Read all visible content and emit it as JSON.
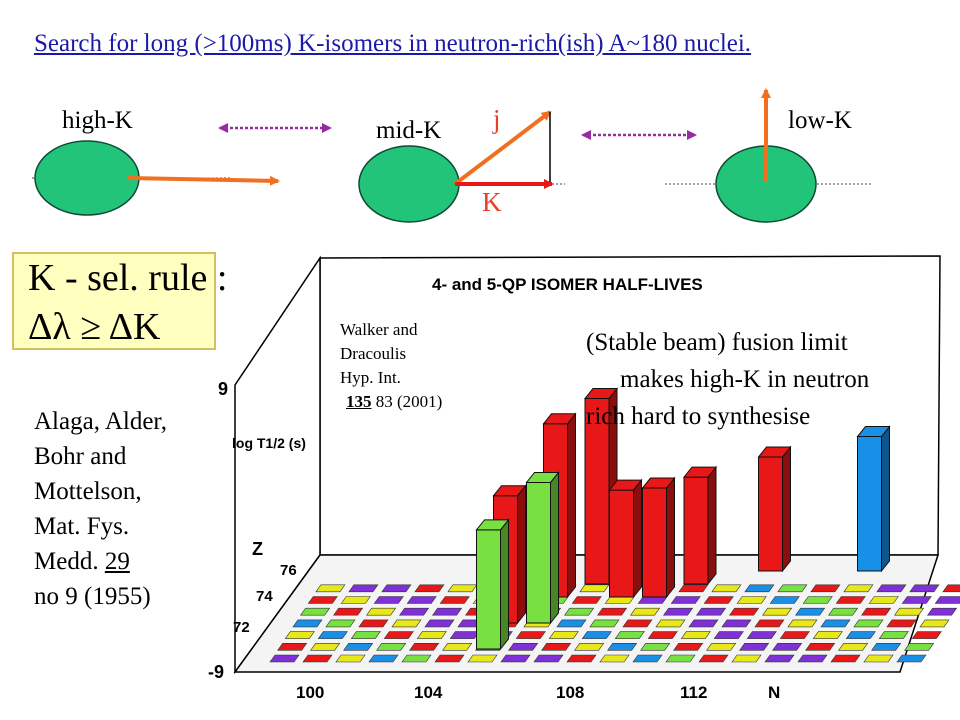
{
  "title": "Search for long (>100ms) K-isomers in neutron-rich(ish) A~180 nuclei.",
  "deformation_diagram": {
    "high_k_label": "high-K",
    "mid_k_label": "mid-K",
    "low_k_label": "low-K",
    "j_symbol": "j",
    "k_symbol": "K"
  },
  "selection_rule": {
    "line1": "K - sel. rule :",
    "line2": "Δλ ≥ ΔK"
  },
  "reference_alaga": {
    "line1": "Alaga, Alder,",
    "line2": "Bohr and",
    "line3": "Mottelson,",
    "line4": "Mat. Fys.",
    "line5_prefix": "Medd.",
    "volume": "29",
    "line6": "no 9 (1955)"
  },
  "reference_walker": {
    "line1": "Walker and",
    "line2": "Dracoulis",
    "line3": "Hyp. Int.",
    "volume": "135",
    "pages": "83 (2001)"
  },
  "fusion_note": {
    "line1": "(Stable beam) fusion limit",
    "line2": "makes high-K in neutron",
    "line3": "rich hard to synthesise"
  },
  "colors": {
    "title": "#1a1aa8",
    "nucleus": "#22c47a",
    "arrow": "#f07020",
    "link_arrow": "#9a2aa0",
    "symbol": "#e8402a",
    "box": "#ffffc0",
    "red_bar": "#e81818",
    "green_bar": "#78e040",
    "yellow_bar": "#e8e818",
    "blue_bar": "#1890e8",
    "purple_bar": "#8030d8"
  },
  "chart_data": {
    "type": "bar3d",
    "title": "4- and 5-QP ISOMER HALF-LIVES",
    "ylabel": "log T1/2 (s)",
    "zlim": [
      -9,
      9
    ],
    "z_ticks": [
      "9",
      "-9"
    ],
    "x_axis_label": "N",
    "x_ticks": [
      "100",
      "104",
      "108",
      "112"
    ],
    "y_axis_label": "Z",
    "y_ticks": [
      "76",
      "74",
      "72"
    ],
    "tall_bars": [
      {
        "N": 106,
        "Z": 72,
        "value": 1.7,
        "color": "green"
      },
      {
        "N": 106,
        "Z": 74,
        "value": 2.5,
        "color": "red"
      },
      {
        "N": 107,
        "Z": 74,
        "value": 3.8,
        "color": "green"
      },
      {
        "N": 107,
        "Z": 76,
        "value": 7.0,
        "color": "red"
      },
      {
        "N": 108,
        "Z": 77,
        "value": 8.2,
        "color": "red"
      },
      {
        "N": 109,
        "Z": 76,
        "value": 0.5,
        "color": "red"
      },
      {
        "N": 110,
        "Z": 76,
        "value": 0.7,
        "color": "red"
      },
      {
        "N": 111,
        "Z": 77,
        "value": 0.5,
        "color": "red"
      },
      {
        "N": 113,
        "Z": 78,
        "value": 1.2,
        "color": "red"
      },
      {
        "N": 116,
        "Z": 78,
        "value": 3.2,
        "color": "blue"
      }
    ]
  }
}
